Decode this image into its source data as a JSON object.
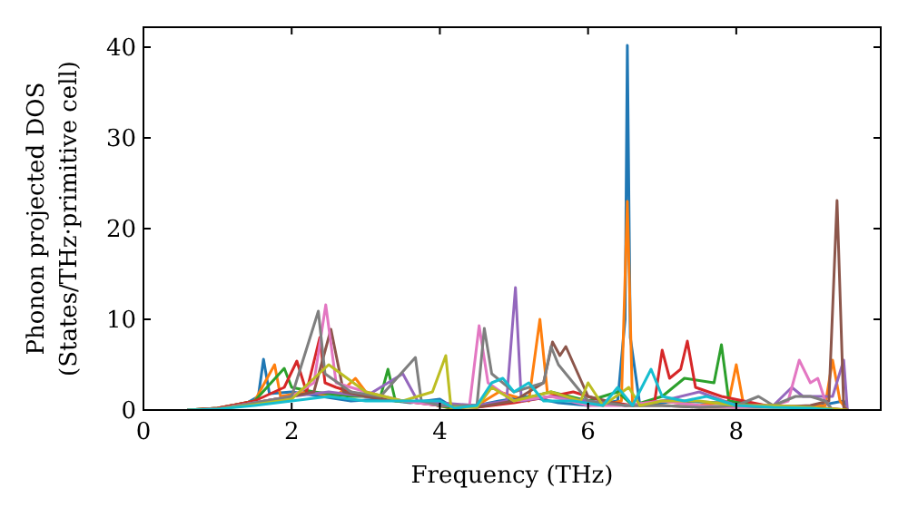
{
  "chart_data": {
    "type": "line",
    "xlabel": "Frequency (THz)",
    "ylabel": "Phonon projected DOS\n(States/THz·primitive cell)",
    "xlim": [
      0,
      9.95
    ],
    "ylim": [
      0,
      42.2
    ],
    "xticks": [
      0,
      2,
      4,
      6,
      8
    ],
    "yticks": [
      0,
      10,
      20,
      30,
      40
    ],
    "series": [
      {
        "color": "#1f77b4",
        "x": [
          0.6,
          1.0,
          1.4,
          1.55,
          1.62,
          1.7,
          2.0,
          2.4,
          2.8,
          3.2,
          3.6,
          4.0,
          4.2,
          4.5,
          4.8,
          5.2,
          5.6,
          6.0,
          6.4,
          6.5,
          6.53,
          6.57,
          6.7,
          7.2,
          7.8,
          8.4,
          9.0,
          9.45,
          9.5
        ],
        "values": [
          0,
          0.2,
          0.8,
          1.5,
          5.6,
          1.8,
          2,
          1.5,
          1,
          1.2,
          0.8,
          1.2,
          0.2,
          0.5,
          1,
          1.5,
          0.8,
          0.5,
          1,
          10,
          40.2,
          8,
          0.5,
          1,
          0.8,
          0.4,
          0.3,
          1,
          0
        ]
      },
      {
        "color": "#ff7f0e",
        "x": [
          0.6,
          1.0,
          1.5,
          1.77,
          1.85,
          2.2,
          2.6,
          2.86,
          3.0,
          3.4,
          3.8,
          4.2,
          4.5,
          4.8,
          5.2,
          5.35,
          5.45,
          5.8,
          6.2,
          6.45,
          6.53,
          6.6,
          7.0,
          7.5,
          7.9,
          8.0,
          8.1,
          8.6,
          9.2,
          9.3,
          9.4,
          9.5
        ],
        "values": [
          0,
          0.2,
          1,
          5,
          1.5,
          2,
          1.5,
          3.5,
          2,
          1,
          0.8,
          0.1,
          0.5,
          2,
          1,
          10,
          2,
          1,
          0.5,
          1,
          23,
          0.5,
          1,
          0.5,
          1,
          5,
          0.5,
          0.3,
          0.5,
          5.5,
          1,
          0
        ]
      },
      {
        "color": "#2ca02c",
        "x": [
          0.6,
          1.0,
          1.5,
          1.9,
          2.0,
          2.3,
          2.8,
          3.2,
          3.3,
          3.4,
          3.8,
          4.1,
          4.5,
          5.0,
          5.5,
          6.0,
          6.4,
          6.6,
          7.0,
          7.3,
          7.7,
          7.8,
          7.9,
          8.4,
          9.0,
          9.5
        ],
        "values": [
          0,
          0.2,
          1,
          4.6,
          2.5,
          2,
          1.5,
          1.5,
          4.5,
          1,
          0.8,
          0.3,
          0.5,
          1,
          2,
          1,
          2,
          0.5,
          1.5,
          3.5,
          3,
          7.2,
          1,
          0.5,
          0.3,
          0
        ]
      },
      {
        "color": "#d62728",
        "x": [
          0.6,
          1.0,
          1.5,
          1.9,
          2.07,
          2.2,
          2.38,
          2.45,
          2.6,
          3.0,
          3.5,
          4.0,
          4.5,
          5.0,
          5.5,
          5.8,
          6.2,
          6.6,
          6.9,
          7.0,
          7.1,
          7.25,
          7.34,
          7.45,
          7.8,
          8.4,
          9.0,
          9.5
        ],
        "values": [
          0,
          0.2,
          1,
          2.5,
          5.4,
          2,
          8,
          3,
          2.5,
          1.5,
          1,
          0.5,
          0.3,
          0.8,
          1.5,
          2,
          1,
          0.5,
          1,
          6.6,
          3.5,
          4.5,
          7.6,
          2.5,
          1.5,
          0.5,
          0.3,
          0
        ]
      },
      {
        "color": "#9467bd",
        "x": [
          0.6,
          1.0,
          1.5,
          2.0,
          2.5,
          3.0,
          3.5,
          3.7,
          4.0,
          4.5,
          4.9,
          5.02,
          5.1,
          5.5,
          6.0,
          6.5,
          7.0,
          7.5,
          8.0,
          8.5,
          8.75,
          8.9,
          9.3,
          9.45,
          9.5
        ],
        "values": [
          0,
          0.1,
          0.8,
          1.5,
          2,
          1.5,
          4,
          1,
          0.8,
          0.5,
          1,
          13.5,
          1,
          1.5,
          1,
          0.5,
          1,
          2,
          0.5,
          0.5,
          2.5,
          1.5,
          1.5,
          5.5,
          0
        ]
      },
      {
        "color": "#8c564b",
        "x": [
          0.6,
          1.0,
          1.5,
          2.0,
          2.3,
          2.53,
          2.7,
          3.0,
          3.5,
          4.0,
          4.5,
          5.0,
          5.4,
          5.52,
          5.62,
          5.7,
          6.0,
          6.5,
          7.0,
          7.5,
          8.0,
          8.5,
          9.0,
          9.25,
          9.36,
          9.45,
          9.5
        ],
        "values": [
          0,
          0.1,
          0.8,
          1.5,
          2,
          8.9,
          2,
          1.5,
          1,
          0.5,
          0.3,
          1,
          3,
          7.5,
          6,
          7,
          1.5,
          0.5,
          0.5,
          0.3,
          0.3,
          0.3,
          0.5,
          1,
          23.1,
          0.3,
          0
        ]
      },
      {
        "color": "#e377c2",
        "x": [
          0.6,
          1.0,
          1.5,
          2.0,
          2.3,
          2.46,
          2.6,
          3.0,
          3.5,
          4.0,
          4.4,
          4.53,
          4.65,
          5.0,
          5.5,
          6.0,
          6.5,
          7.0,
          7.5,
          8.0,
          8.5,
          8.7,
          8.85,
          9.0,
          9.1,
          9.2,
          9.3
        ],
        "values": [
          0,
          0.1,
          0.8,
          1.5,
          3,
          11.6,
          3,
          2,
          1,
          0.5,
          0.5,
          9.3,
          3,
          1,
          1.5,
          0.5,
          0.5,
          1,
          0.5,
          0.3,
          0.5,
          1,
          5.5,
          3,
          3.5,
          1,
          0
        ]
      },
      {
        "color": "#7f7f7f",
        "x": [
          0.6,
          1.0,
          1.5,
          2.0,
          2.36,
          2.45,
          2.8,
          3.2,
          3.67,
          3.75,
          4.0,
          4.5,
          4.6,
          4.7,
          5.0,
          5.4,
          5.5,
          5.6,
          6.0,
          6.5,
          7.0,
          7.5,
          8.0,
          8.3,
          8.5,
          8.8,
          9.0,
          9.2,
          9.3
        ],
        "values": [
          0,
          0.1,
          0.8,
          1.5,
          10.9,
          4,
          2,
          1.5,
          5.8,
          1,
          0.5,
          0.5,
          9,
          4,
          2,
          3,
          7,
          5,
          1,
          0.5,
          0.5,
          0.3,
          0.5,
          1.5,
          0.5,
          1.5,
          1.5,
          1,
          0
        ]
      },
      {
        "color": "#bcbd22",
        "x": [
          0.6,
          1.0,
          1.5,
          2.0,
          2.5,
          3.0,
          3.5,
          3.9,
          4.08,
          4.15,
          4.5,
          4.7,
          5.0,
          5.5,
          5.9,
          6.0,
          6.2,
          6.55,
          6.7,
          7.0,
          7.5,
          8.0,
          8.5,
          9.0,
          9.5
        ],
        "values": [
          0,
          0.1,
          0.6,
          1.2,
          5,
          2,
          1,
          2,
          6,
          0.3,
          0.3,
          2.5,
          1,
          2,
          1,
          3,
          0.5,
          2.5,
          0.5,
          1,
          1,
          0.5,
          0.5,
          0.3,
          0
        ]
      },
      {
        "color": "#17becf",
        "x": [
          0.6,
          1.0,
          1.5,
          2.0,
          2.5,
          3.0,
          3.5,
          4.0,
          4.2,
          4.5,
          4.7,
          4.85,
          5.0,
          5.2,
          5.4,
          5.8,
          6.2,
          6.4,
          6.6,
          6.85,
          7.0,
          7.3,
          7.6,
          8.0,
          8.5,
          9.0,
          9.3
        ],
        "values": [
          0,
          0.1,
          0.5,
          1,
          1.5,
          1,
          1,
          1,
          0.2,
          0.5,
          3,
          3.5,
          2,
          3,
          1,
          1,
          0.5,
          2.5,
          0.5,
          4.5,
          1.5,
          1,
          1.5,
          0.5,
          0.3,
          0.2,
          0
        ]
      }
    ]
  }
}
